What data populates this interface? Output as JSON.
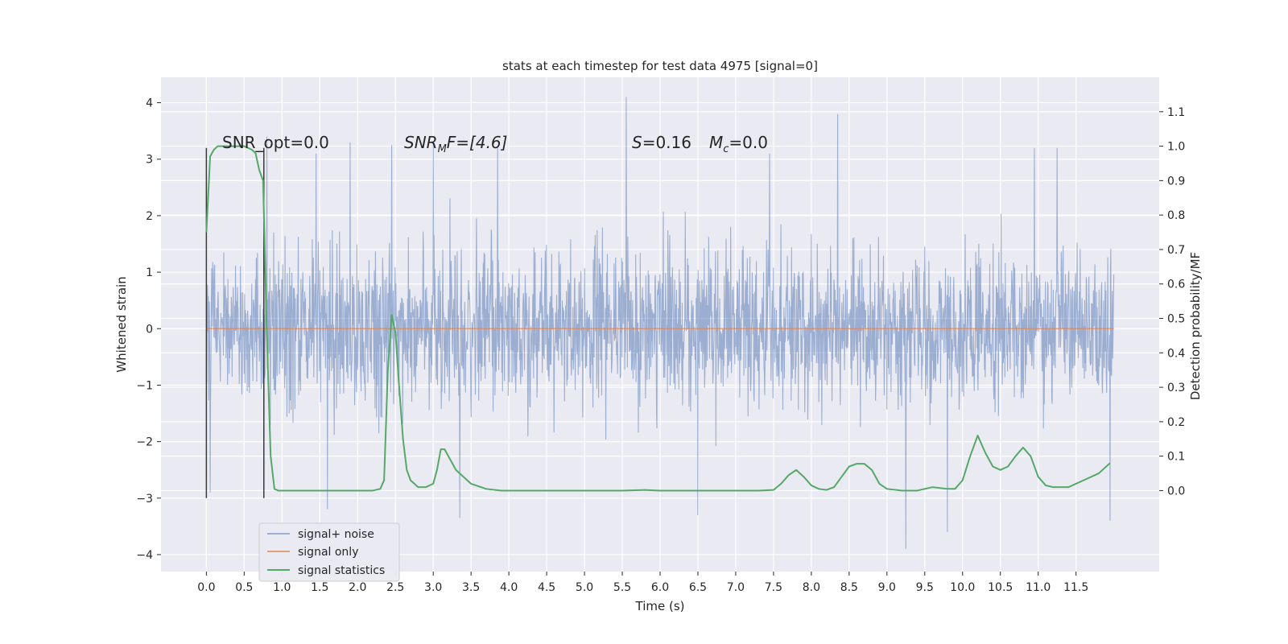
{
  "chart_data": {
    "type": "line",
    "title": "stats at each timestep for test data 4975 [signal=0]",
    "xlabel": "Time (s)",
    "ylabel": "Whitened strain",
    "y2label": "Detection probability/MF",
    "xlim": [
      -0.6,
      12.6
    ],
    "ylim": [
      -4.3,
      4.45
    ],
    "y2lim": [
      -0.235,
      1.2
    ],
    "x_ticks": [
      0.0,
      0.5,
      1.0,
      1.5,
      2.0,
      2.5,
      3.0,
      3.5,
      4.0,
      4.5,
      5.0,
      5.5,
      6.0,
      6.5,
      7.0,
      7.5,
      8.0,
      8.5,
      9.0,
      9.5,
      10.0,
      10.5,
      11.0,
      11.5
    ],
    "x_tick_labels": [
      "0.0",
      "0.5",
      "1.0",
      "1.5",
      "2.0",
      "2.5",
      "3.0",
      "3.5",
      "4.0",
      "4.5",
      "5.0",
      "5.5",
      "6.0",
      "6.5",
      "7.0",
      "7.5",
      "8.0",
      "8.5",
      "9.0",
      "9.5",
      "10.0",
      "10.5",
      "11.0",
      "11.5"
    ],
    "y_ticks": [
      -4,
      -3,
      -2,
      -1,
      0,
      1,
      2,
      3,
      4
    ],
    "y_tick_labels": [
      "−4",
      "−3",
      "−2",
      "−1",
      "0",
      "1",
      "2",
      "3",
      "4"
    ],
    "y2_ticks": [
      0.0,
      0.1,
      0.2,
      0.3,
      0.4,
      0.5,
      0.6,
      0.7,
      0.8,
      0.9,
      1.0,
      1.1
    ],
    "y2_tick_labels": [
      "0.0",
      "0.1",
      "0.2",
      "0.3",
      "0.4",
      "0.5",
      "0.6",
      "0.7",
      "0.8",
      "0.9",
      "1.0",
      "1.1"
    ],
    "grid": true,
    "legend_position": "lower-left",
    "series": [
      {
        "name": "signal+ noise",
        "axis": "left",
        "color": "#4c72b0",
        "x_range": [
          0.0,
          12.0
        ],
        "typical_amplitude": 1.3,
        "envelope": {
          "max": 4.1,
          "min": -3.9
        },
        "peaks": [
          {
            "x": 0.8,
            "y": 3.4
          },
          {
            "x": 1.45,
            "y": 3.1
          },
          {
            "x": 1.9,
            "y": 3.3
          },
          {
            "x": 2.45,
            "y": 3.25
          },
          {
            "x": 3.0,
            "y": 3.3
          },
          {
            "x": 3.85,
            "y": 3.2
          },
          {
            "x": 5.55,
            "y": 4.1
          },
          {
            "x": 7.45,
            "y": 3.1
          },
          {
            "x": 8.35,
            "y": 3.8
          },
          {
            "x": 10.95,
            "y": 3.2
          },
          {
            "x": 11.25,
            "y": 3.2
          }
        ],
        "troughs": [
          {
            "x": 0.05,
            "y": -2.9
          },
          {
            "x": 1.6,
            "y": -3.2
          },
          {
            "x": 3.35,
            "y": -3.35
          },
          {
            "x": 6.5,
            "y": -3.3
          },
          {
            "x": 9.25,
            "y": -3.9
          },
          {
            "x": 9.8,
            "y": -3.6
          },
          {
            "x": 11.95,
            "y": -3.4
          }
        ]
      },
      {
        "name": "signal only",
        "axis": "left",
        "color": "#dd8452",
        "x": [
          0.0,
          12.0
        ],
        "y": [
          0.0,
          0.0
        ]
      },
      {
        "name": "signal statistics",
        "axis": "right",
        "color": "#55a868",
        "x": [
          0.0,
          0.05,
          0.1,
          0.15,
          0.2,
          0.3,
          0.4,
          0.5,
          0.6,
          0.65,
          0.7,
          0.75,
          0.8,
          0.85,
          0.9,
          0.95,
          1.0,
          1.2,
          1.5,
          2.0,
          2.2,
          2.3,
          2.35,
          2.4,
          2.45,
          2.5,
          2.55,
          2.6,
          2.65,
          2.7,
          2.8,
          2.9,
          3.0,
          3.05,
          3.1,
          3.15,
          3.2,
          3.3,
          3.4,
          3.5,
          3.7,
          3.9,
          4.1,
          4.5,
          5.0,
          5.5,
          5.8,
          6.0,
          6.5,
          7.0,
          7.3,
          7.5,
          7.6,
          7.7,
          7.8,
          7.9,
          8.0,
          8.1,
          8.2,
          8.3,
          8.4,
          8.5,
          8.6,
          8.7,
          8.8,
          8.9,
          9.0,
          9.2,
          9.4,
          9.6,
          9.8,
          9.9,
          10.0,
          10.1,
          10.2,
          10.3,
          10.4,
          10.5,
          10.6,
          10.7,
          10.8,
          10.9,
          11.0,
          11.1,
          11.2,
          11.4,
          11.6,
          11.8,
          11.95
        ],
        "y": [
          0.75,
          0.97,
          0.99,
          1.0,
          1.0,
          1.0,
          1.0,
          1.0,
          0.99,
          0.98,
          0.93,
          0.9,
          0.45,
          0.1,
          0.005,
          0.0,
          0.0,
          0.0,
          0.0,
          0.0,
          0.0,
          0.005,
          0.03,
          0.35,
          0.51,
          0.46,
          0.3,
          0.15,
          0.06,
          0.03,
          0.01,
          0.01,
          0.02,
          0.06,
          0.12,
          0.12,
          0.1,
          0.06,
          0.04,
          0.02,
          0.005,
          0.0,
          0.0,
          0.0,
          0.0,
          0.0,
          0.002,
          0.0,
          0.0,
          0.0,
          0.0,
          0.002,
          0.02,
          0.045,
          0.06,
          0.04,
          0.015,
          0.005,
          0.002,
          0.01,
          0.04,
          0.07,
          0.078,
          0.078,
          0.06,
          0.02,
          0.005,
          0.0,
          0.0,
          0.01,
          0.005,
          0.005,
          0.03,
          0.1,
          0.16,
          0.11,
          0.07,
          0.06,
          0.07,
          0.1,
          0.125,
          0.1,
          0.04,
          0.015,
          0.01,
          0.01,
          0.03,
          0.05,
          0.08
        ]
      }
    ],
    "vertical_markers": [
      {
        "x": 0.0,
        "ymin": -3.0,
        "ymax": 3.2
      },
      {
        "x": 0.76,
        "ymin": -3.0,
        "ymax": 3.2
      }
    ],
    "annotations": [
      {
        "id": "snr-opt",
        "text": "SNR_opt=0.0",
        "x": 0.2,
        "y": 3.15
      },
      {
        "id": "snr-mf",
        "text_main": "SNR",
        "text_sub": "M",
        "text_rest": "F=[4.6]",
        "x": 2.6,
        "y": 3.15
      },
      {
        "id": "s-mc",
        "text_s": "S",
        "text_s_rest": "=0.16",
        "text_m": "M",
        "text_m_sub": "c",
        "text_m_rest": "=0.0",
        "x": 5.6,
        "y": 3.15
      }
    ]
  }
}
